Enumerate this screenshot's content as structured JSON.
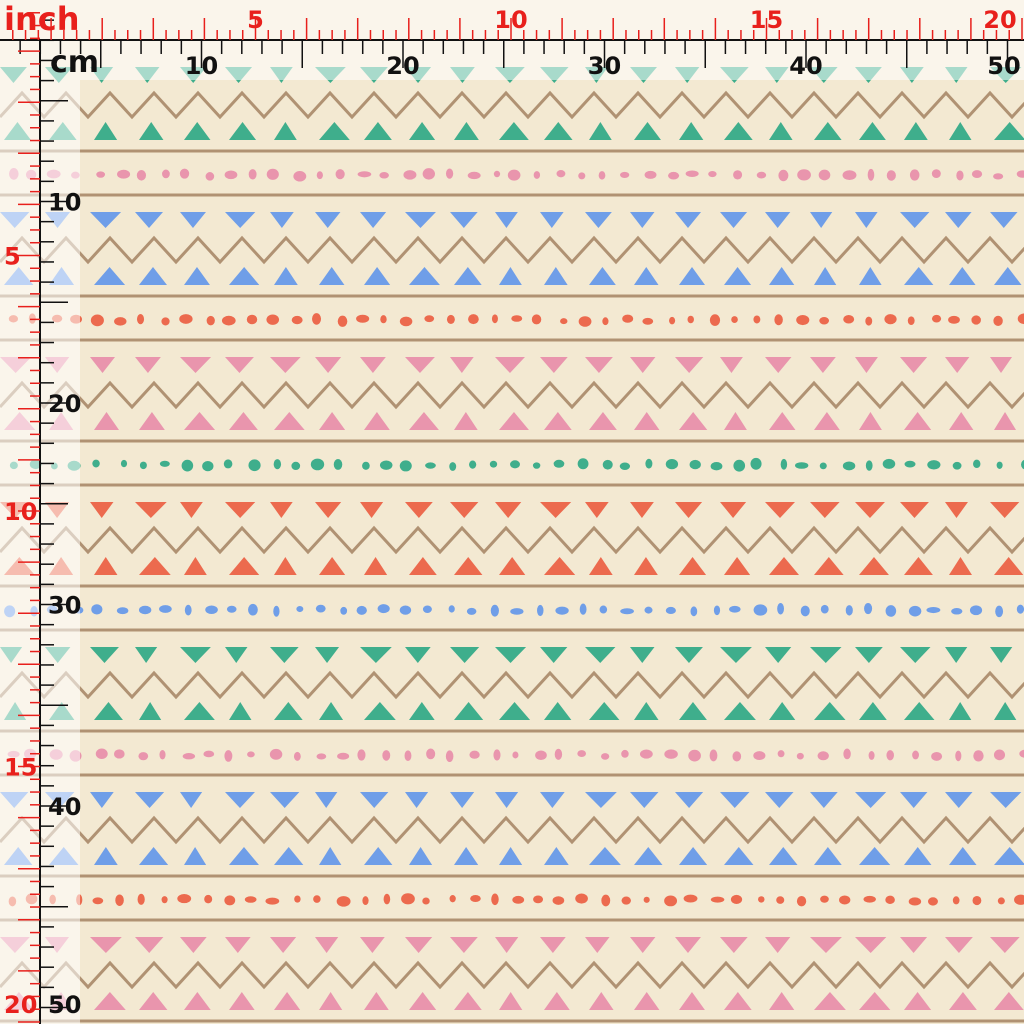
{
  "rulers": {
    "inch": {
      "unit": "inch",
      "labels": [
        5,
        10,
        15,
        20
      ]
    },
    "cm": {
      "unit": "cm",
      "labels": [
        10,
        20,
        30,
        40,
        50
      ]
    },
    "left_cm": {
      "labels": [
        10,
        20,
        30,
        40,
        50
      ]
    },
    "left_inch": {
      "labels": [
        5,
        10,
        15,
        20
      ]
    }
  }
}
